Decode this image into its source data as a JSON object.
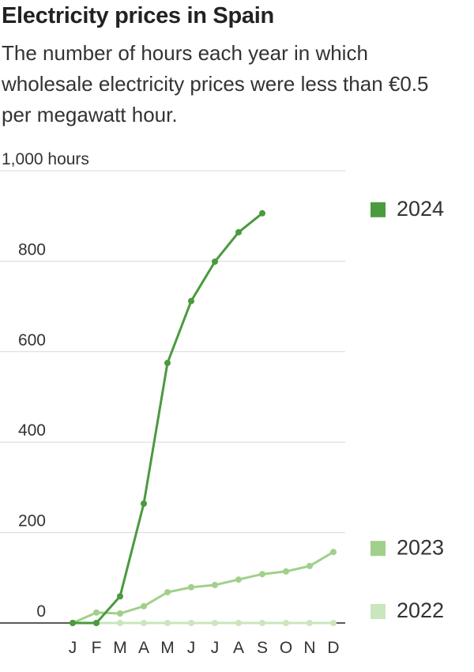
{
  "chart_data": {
    "type": "line",
    "title": "Electricity prices in Spain",
    "subtitle": "The number of hours each year in which wholesale electricity prices were less than €0.5 per megawatt hour.",
    "categories": [
      "J",
      "F",
      "M",
      "A",
      "M",
      "J",
      "J",
      "A",
      "S",
      "O",
      "N",
      "D"
    ],
    "series": [
      {
        "name": "2024",
        "color": "#4a9a3e",
        "values": [
          0,
          0,
          59,
          264,
          575,
          712,
          799,
          864,
          906,
          null,
          null,
          null
        ]
      },
      {
        "name": "2023",
        "color": "#a0d08b",
        "values": [
          0,
          23,
          21,
          37,
          68,
          79,
          84,
          96,
          108,
          114,
          126,
          157
        ]
      },
      {
        "name": "2022",
        "color": "#c9e6bc",
        "values": [
          0,
          0,
          0,
          0,
          0,
          0,
          0,
          0,
          0,
          0,
          0,
          0
        ]
      }
    ],
    "ylim": [
      0,
      1000
    ],
    "yticks": [
      0,
      200,
      400,
      600,
      800,
      {
        "value": 1000,
        "label": "1,000 hours"
      }
    ],
    "grid": true
  }
}
